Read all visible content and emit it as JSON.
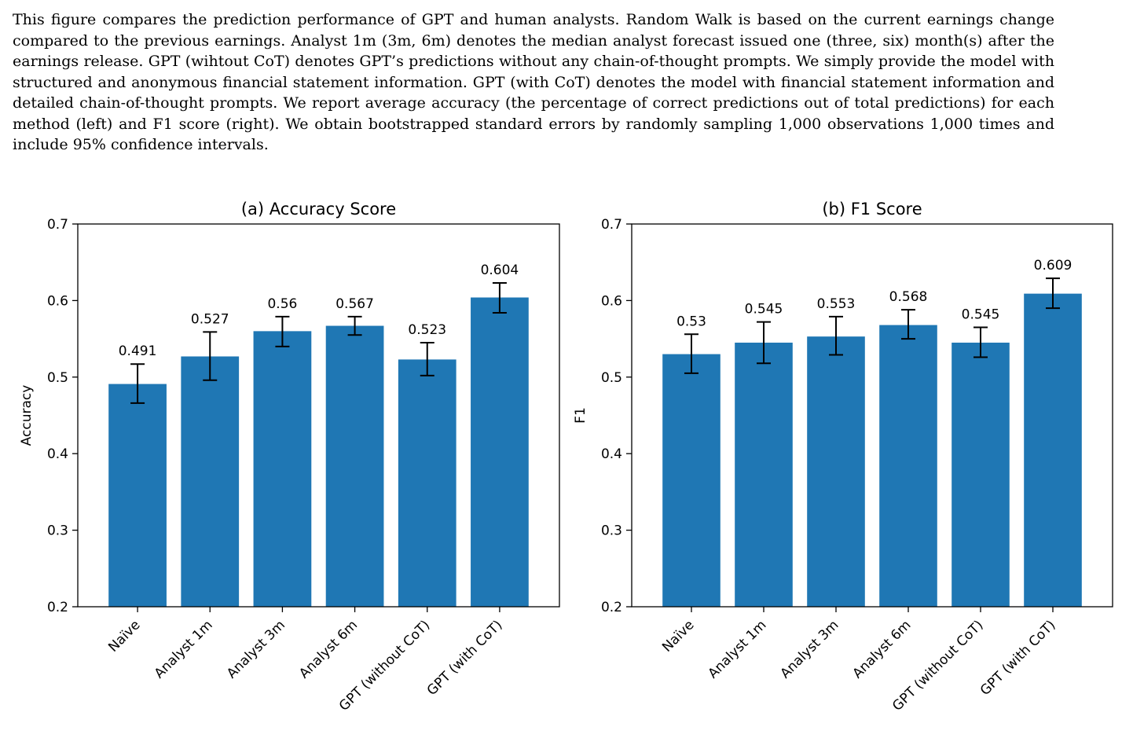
{
  "caption": "This figure compares the prediction performance of GPT and human analysts. Random Walk is based on the current earnings change compared to the previous earnings. Analyst 1m (3m, 6m) denotes the median analyst forecast issued one (three, six) month(s) after the earnings release. GPT (wihtout CoT) denotes GPT’s predictions without any chain-of-thought prompts. We simply provide the model with structured and anonymous financial statement information. GPT (with CoT) denotes the model with financial statement information and detailed chain-of-thought prompts. We report average accuracy (the percentage of correct predictions out of total predictions) for each method (left) and F1 score (right). We obtain bootstrapped standard errors by randomly sampling 1,000 observations 1,000 times and include 95% confidence intervals.",
  "colors": {
    "bar": "#1f77b4",
    "error_bar": "#000000",
    "axis": "#000000"
  },
  "chart_data": [
    {
      "type": "bar",
      "title": "(a) Accuracy Score",
      "xlabel": "",
      "ylabel": "Accuracy",
      "ylim": [
        0.2,
        0.7
      ],
      "yticks": [
        "0.2",
        "0.3",
        "0.4",
        "0.5",
        "0.6",
        "0.7"
      ],
      "categories": [
        "Naïve",
        "Analyst 1m",
        "Analyst 3m",
        "Analyst 6m",
        "GPT (without CoT)",
        "GPT (with CoT)"
      ],
      "values": [
        0.491,
        0.527,
        0.56,
        0.567,
        0.523,
        0.604
      ],
      "value_labels": [
        "0.491",
        "0.527",
        "0.56",
        "0.567",
        "0.523",
        "0.604"
      ],
      "ci_low": [
        0.466,
        0.496,
        0.54,
        0.555,
        0.502,
        0.584
      ],
      "ci_high": [
        0.517,
        0.559,
        0.579,
        0.579,
        0.545,
        0.623
      ],
      "grid": false
    },
    {
      "type": "bar",
      "title": "(b) F1 Score",
      "xlabel": "",
      "ylabel": "F1",
      "ylim": [
        0.2,
        0.7
      ],
      "yticks": [
        "0.2",
        "0.3",
        "0.4",
        "0.5",
        "0.6",
        "0.7"
      ],
      "categories": [
        "Naïve",
        "Analyst 1m",
        "Analyst 3m",
        "Analyst 6m",
        "GPT (without CoT)",
        "GPT (with CoT)"
      ],
      "values": [
        0.53,
        0.545,
        0.553,
        0.568,
        0.545,
        0.609
      ],
      "value_labels": [
        "0.53",
        "0.545",
        "0.553",
        "0.568",
        "0.545",
        "0.609"
      ],
      "ci_low": [
        0.505,
        0.518,
        0.529,
        0.55,
        0.526,
        0.59
      ],
      "ci_high": [
        0.556,
        0.572,
        0.579,
        0.588,
        0.565,
        0.629
      ],
      "grid": false
    }
  ]
}
